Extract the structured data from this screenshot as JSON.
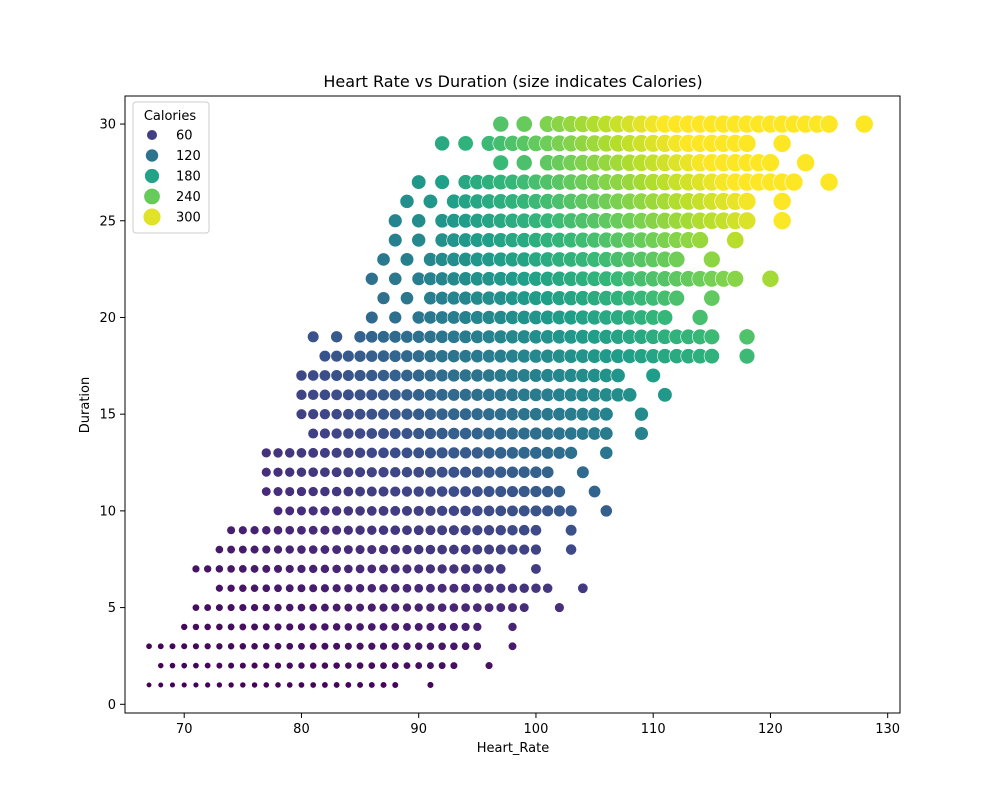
{
  "chart_data": {
    "type": "scatter",
    "title": "Heart Rate vs Duration (size indicates Calories)",
    "xlabel": "Heart_Rate",
    "ylabel": "Duration",
    "xlim": [
      64.95,
      131.05
    ],
    "ylim": [
      -0.45,
      31.45
    ],
    "xticks": [
      70,
      80,
      90,
      100,
      110,
      120,
      130
    ],
    "yticks": [
      0,
      5,
      10,
      15,
      20,
      25,
      30
    ],
    "grid": false,
    "colormap": "viridis",
    "calories_range": [
      1,
      314
    ],
    "size_range_px": [
      2.5,
      9
    ],
    "legend": {
      "title": "Calories",
      "placement": "top-left",
      "entries": [
        {
          "label": "60",
          "value": 60
        },
        {
          "label": "120",
          "value": 120
        },
        {
          "label": "180",
          "value": 180
        },
        {
          "label": "240",
          "value": 240
        },
        {
          "label": "300",
          "value": 300
        }
      ]
    },
    "rows": [
      {
        "duration": 1,
        "hr_min": 67,
        "hr_max": 91
      },
      {
        "duration": 2,
        "hr_min": 68,
        "hr_max": 96
      },
      {
        "duration": 3,
        "hr_min": 67,
        "hr_max": 98
      },
      {
        "duration": 4,
        "hr_min": 70,
        "hr_max": 98
      },
      {
        "duration": 5,
        "hr_min": 71,
        "hr_max": 102
      },
      {
        "duration": 6,
        "hr_min": 73,
        "hr_max": 104
      },
      {
        "duration": 7,
        "hr_min": 71,
        "hr_max": 100
      },
      {
        "duration": 8,
        "hr_min": 73,
        "hr_max": 103
      },
      {
        "duration": 9,
        "hr_min": 74,
        "hr_max": 103
      },
      {
        "duration": 10,
        "hr_min": 78,
        "hr_max": 106
      },
      {
        "duration": 11,
        "hr_min": 77,
        "hr_max": 105
      },
      {
        "duration": 12,
        "hr_min": 77,
        "hr_max": 104
      },
      {
        "duration": 13,
        "hr_min": 77,
        "hr_max": 106
      },
      {
        "duration": 14,
        "hr_min": 81,
        "hr_max": 109
      },
      {
        "duration": 15,
        "hr_min": 80,
        "hr_max": 109
      },
      {
        "duration": 16,
        "hr_min": 80,
        "hr_max": 111
      },
      {
        "duration": 17,
        "hr_min": 80,
        "hr_max": 110
      },
      {
        "duration": 18,
        "hr_min": 82,
        "hr_max": 118
      },
      {
        "duration": 19,
        "hr_min": 81,
        "hr_max": 118
      },
      {
        "duration": 20,
        "hr_min": 86,
        "hr_max": 114
      },
      {
        "duration": 21,
        "hr_min": 87,
        "hr_max": 115
      },
      {
        "duration": 22,
        "hr_min": 86,
        "hr_max": 120
      },
      {
        "duration": 23,
        "hr_min": 87,
        "hr_max": 115
      },
      {
        "duration": 24,
        "hr_min": 88,
        "hr_max": 117
      },
      {
        "duration": 25,
        "hr_min": 88,
        "hr_max": 121
      },
      {
        "duration": 26,
        "hr_min": 89,
        "hr_max": 121
      },
      {
        "duration": 27,
        "hr_min": 90,
        "hr_max": 125
      },
      {
        "duration": 28,
        "hr_min": 97,
        "hr_max": 123
      },
      {
        "duration": 29,
        "hr_min": 92,
        "hr_max": 121
      },
      {
        "duration": 30,
        "hr_min": 97,
        "hr_max": 128
      }
    ]
  }
}
